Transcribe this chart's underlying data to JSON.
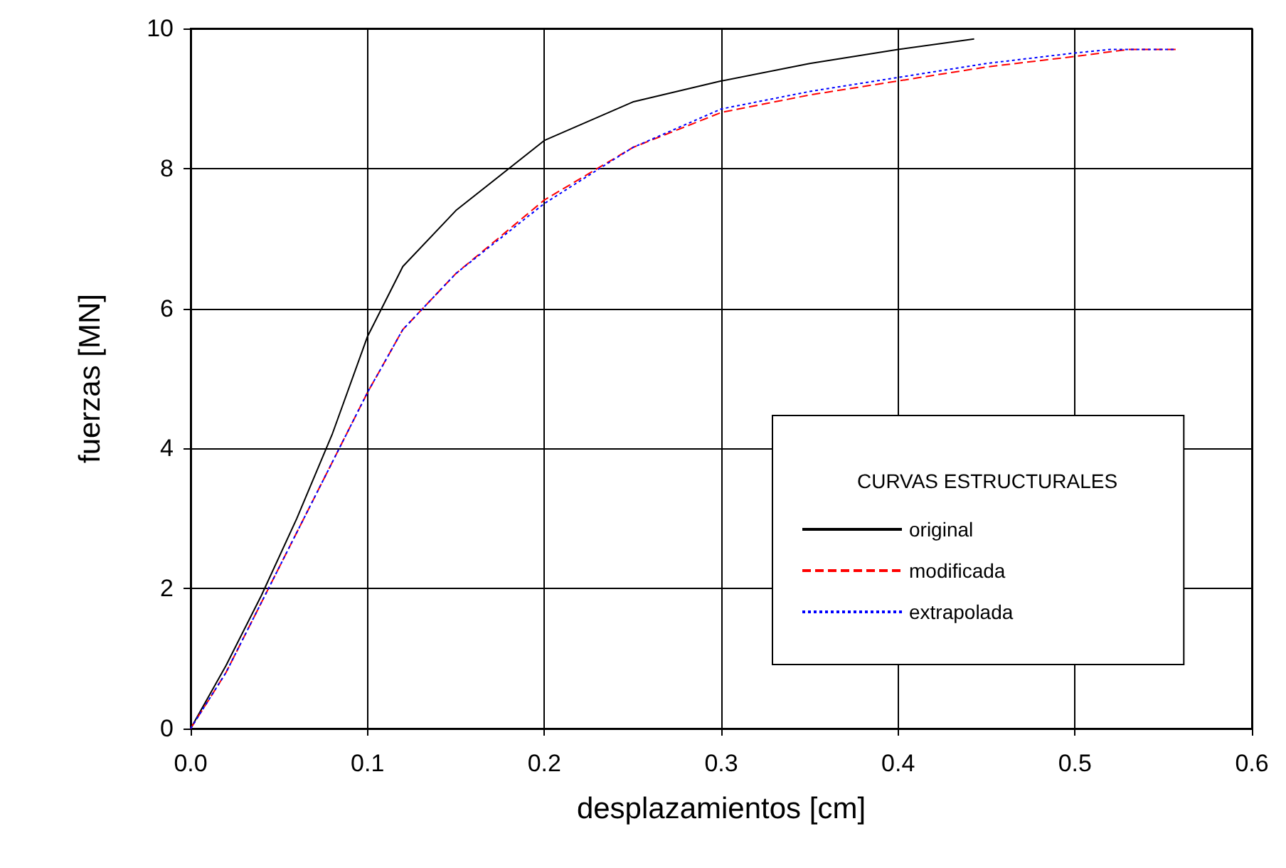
{
  "chart_data": {
    "type": "line",
    "xlabel": "desplazamientos [cm]",
    "ylabel": "fuerzas [MN]",
    "legend_title": "CURVAS ESTRUCTURALES",
    "legend": "bottom right",
    "grid": true,
    "marker": "none",
    "xlim": [
      0,
      0.6
    ],
    "xticks": [
      {
        "value": 0,
        "label": "0.0"
      },
      {
        "value": 0.1,
        "label": "0.1"
      },
      {
        "value": 0.2,
        "label": "0.2"
      },
      {
        "value": 0.3,
        "label": "0.3"
      },
      {
        "value": 0.4,
        "label": "0.4"
      },
      {
        "value": 0.5,
        "label": "0.5"
      },
      {
        "value": 0.6,
        "label": "0.6"
      }
    ],
    "ylim": [
      0,
      10
    ],
    "yticks": [
      0,
      2,
      4,
      6,
      8,
      10
    ],
    "series": [
      {
        "name": "original",
        "color": "#000000",
        "line_style": "solid",
        "x": [
          0,
          0.02,
          0.04,
          0.06,
          0.08,
          0.1,
          0.12,
          0.15,
          0.2,
          0.25,
          0.3,
          0.35,
          0.4,
          0.443
        ],
        "values": [
          0,
          0.9,
          1.9,
          3.0,
          4.2,
          5.6,
          6.6,
          7.4,
          8.4,
          8.95,
          9.25,
          9.5,
          9.7,
          9.85
        ]
      },
      {
        "name": "modificada",
        "color": "#ff0000",
        "line_style": "dashed",
        "x": [
          0,
          0.02,
          0.04,
          0.06,
          0.08,
          0.1,
          0.12,
          0.15,
          0.2,
          0.25,
          0.3,
          0.35,
          0.4,
          0.45,
          0.5,
          0.53,
          0.557
        ],
        "values": [
          0,
          0.8,
          1.8,
          2.8,
          3.8,
          4.8,
          5.7,
          6.5,
          7.55,
          8.3,
          8.8,
          9.05,
          9.25,
          9.45,
          9.6,
          9.7,
          9.7
        ]
      },
      {
        "name": "extrapolada",
        "color": "#0000ff",
        "line_style": "dotted",
        "x": [
          0,
          0.02,
          0.04,
          0.06,
          0.08,
          0.1,
          0.12,
          0.15,
          0.2,
          0.25,
          0.3,
          0.35,
          0.4,
          0.45,
          0.5,
          0.52,
          0.557
        ],
        "values": [
          0,
          0.8,
          1.8,
          2.8,
          3.8,
          4.8,
          5.7,
          6.5,
          7.5,
          8.3,
          8.85,
          9.1,
          9.3,
          9.5,
          9.65,
          9.7,
          9.7
        ]
      }
    ]
  }
}
